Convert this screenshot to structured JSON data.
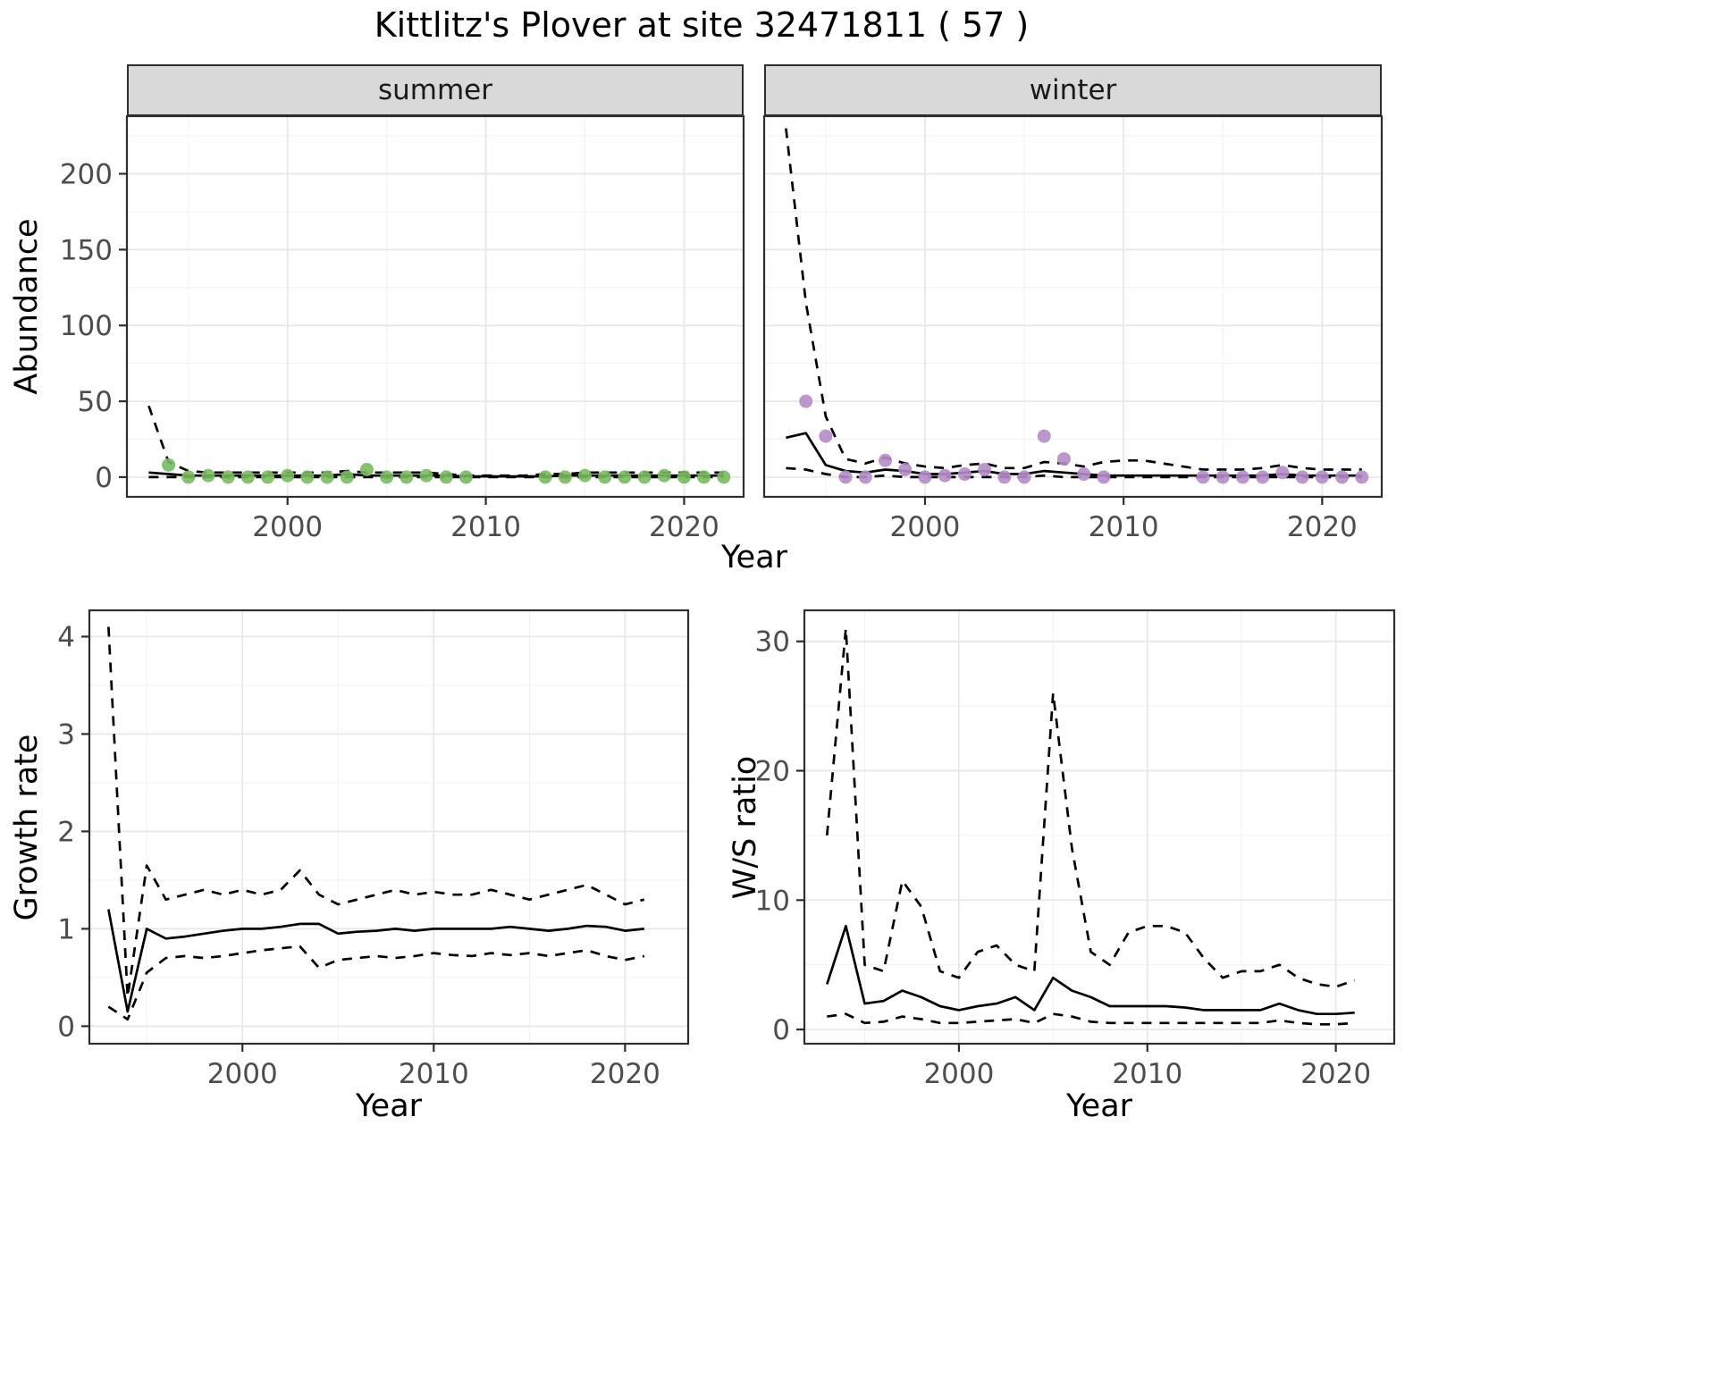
{
  "title": "Kittlitz's Plover at site 32471811 ( 57 )",
  "labels": {
    "strip_summer": "summer",
    "strip_winter": "winter",
    "ylabel_top": "Abundance",
    "ylabel_growth": "Growth rate",
    "ylabel_ws": "W/S ratio",
    "xlabel_top": "Year",
    "xlabel_growth": "Year",
    "xlabel_ws": "Year"
  },
  "colors": {
    "summer_point": "#77bb5e",
    "winter_point": "#b48cc8",
    "line": "#000000",
    "strip_bg": "#d9d9d9",
    "grid_major": "#e7e7e7",
    "grid_minor": "#f3f3f3",
    "panel_border": "#2e2e2e",
    "tick_text": "#4d4d4d"
  },
  "chart_data": [
    {
      "id": "abundance_summer",
      "type": "line",
      "facet": "summer",
      "xlabel": "Year",
      "ylabel": "Abundance",
      "x": [
        1993,
        1994,
        1995,
        1996,
        1997,
        1998,
        1999,
        2000,
        2001,
        2002,
        2003,
        2004,
        2005,
        2006,
        2007,
        2008,
        2009,
        2010,
        2011,
        2012,
        2013,
        2014,
        2015,
        2016,
        2017,
        2018,
        2019,
        2020,
        2021,
        2022
      ],
      "xticks": [
        2000,
        2010,
        2020
      ],
      "yticks": [
        0,
        50,
        100,
        150,
        200
      ],
      "xlim": [
        1991.9,
        2023.0
      ],
      "ylim": [
        -13,
        238
      ],
      "series": [
        {
          "name": "upper_95ci",
          "style": "dashed",
          "values": [
            47,
            10,
            4,
            3,
            3,
            3,
            3,
            3,
            3,
            3,
            4,
            3,
            3,
            3,
            3,
            2,
            1,
            1,
            1,
            1,
            2,
            2,
            3,
            3,
            3,
            3,
            3,
            3,
            3,
            3
          ]
        },
        {
          "name": "median",
          "style": "solid",
          "values": [
            3,
            2,
            1,
            1,
            1,
            1,
            1,
            1,
            1,
            1,
            2,
            1,
            1,
            1,
            1,
            1,
            0.5,
            0.5,
            0.5,
            0.5,
            0.5,
            1,
            1,
            1,
            1,
            1,
            1,
            1,
            1,
            1
          ]
        },
        {
          "name": "lower_95ci",
          "style": "dashed",
          "values": [
            0,
            0,
            0,
            0,
            0,
            0,
            0,
            0,
            0,
            0,
            0,
            0,
            0,
            0,
            0,
            0,
            0,
            0,
            0,
            0,
            0,
            0,
            0,
            0,
            0,
            0,
            0,
            0,
            0,
            0
          ]
        },
        {
          "name": "observed_counts",
          "style": "points",
          "color_key": "summer_point",
          "values": [
            null,
            8,
            0,
            1,
            0,
            0,
            0,
            1,
            0,
            0,
            0,
            5,
            0,
            0,
            1,
            0,
            0,
            null,
            null,
            null,
            0,
            0,
            1,
            0,
            0,
            0,
            1,
            0,
            0,
            0
          ]
        }
      ]
    },
    {
      "id": "abundance_winter",
      "type": "line",
      "facet": "winter",
      "xlabel": "Year",
      "ylabel": "Abundance",
      "x": [
        1993,
        1994,
        1995,
        1996,
        1997,
        1998,
        1999,
        2000,
        2001,
        2002,
        2003,
        2004,
        2005,
        2006,
        2007,
        2008,
        2009,
        2010,
        2011,
        2012,
        2013,
        2014,
        2015,
        2016,
        2017,
        2018,
        2019,
        2020,
        2021,
        2022
      ],
      "xticks": [
        2000,
        2010,
        2020
      ],
      "yticks": [
        0,
        50,
        100,
        150,
        200
      ],
      "xlim": [
        1991.9,
        2023.0
      ],
      "ylim": [
        -13,
        238
      ],
      "series": [
        {
          "name": "upper_95ci",
          "style": "dashed",
          "values": [
            230,
            115,
            40,
            12,
            9,
            13,
            9,
            7,
            6,
            8,
            9,
            6,
            6,
            10,
            9,
            7,
            10,
            11,
            11,
            9,
            7,
            5,
            5,
            5,
            6,
            8,
            6,
            5,
            5,
            5
          ]
        },
        {
          "name": "median",
          "style": "solid",
          "values": [
            26,
            29,
            8,
            4,
            3,
            5,
            4,
            2,
            2,
            3,
            4,
            2,
            2,
            4,
            3,
            2,
            1,
            1,
            1,
            1,
            1,
            1,
            1,
            1,
            1,
            2,
            1,
            1,
            1,
            1
          ]
        },
        {
          "name": "lower_95ci",
          "style": "dashed",
          "values": [
            6,
            5,
            2,
            0,
            0,
            1,
            0,
            0,
            0,
            0,
            0,
            0,
            0,
            1,
            0,
            0,
            0,
            0,
            0,
            0,
            0,
            0,
            0,
            0,
            0,
            0,
            0,
            0,
            0,
            0
          ]
        },
        {
          "name": "observed_counts",
          "style": "points",
          "color_key": "winter_point",
          "values": [
            null,
            50,
            27,
            0,
            0,
            11,
            5,
            0,
            1,
            2,
            5,
            0,
            0,
            27,
            12,
            2,
            0,
            null,
            null,
            null,
            null,
            0,
            0,
            0,
            0,
            3,
            0,
            0,
            0,
            0
          ]
        }
      ]
    },
    {
      "id": "growth_rate",
      "type": "line",
      "xlabel": "Year",
      "ylabel": "Growth rate",
      "x": [
        1993,
        1994,
        1995,
        1996,
        1997,
        1998,
        1999,
        2000,
        2001,
        2002,
        2003,
        2004,
        2005,
        2006,
        2007,
        2008,
        2009,
        2010,
        2011,
        2012,
        2013,
        2014,
        2015,
        2016,
        2017,
        2018,
        2019,
        2020,
        2021
      ],
      "xticks": [
        2000,
        2010,
        2020
      ],
      "yticks": [
        0,
        1,
        2,
        3,
        4
      ],
      "xlim": [
        1992.0,
        2023.3
      ],
      "ylim": [
        -0.18,
        4.27
      ],
      "series": [
        {
          "name": "upper_95ci",
          "style": "dashed",
          "values": [
            4.1,
            0.3,
            1.65,
            1.3,
            1.35,
            1.4,
            1.35,
            1.4,
            1.35,
            1.4,
            1.6,
            1.35,
            1.25,
            1.3,
            1.35,
            1.4,
            1.35,
            1.38,
            1.35,
            1.35,
            1.4,
            1.35,
            1.3,
            1.35,
            1.4,
            1.45,
            1.35,
            1.25,
            1.3
          ]
        },
        {
          "name": "median",
          "style": "solid",
          "values": [
            1.2,
            0.15,
            1.0,
            0.9,
            0.92,
            0.95,
            0.98,
            1.0,
            1.0,
            1.02,
            1.05,
            1.05,
            0.95,
            0.97,
            0.98,
            1.0,
            0.98,
            1.0,
            1.0,
            1.0,
            1.0,
            1.02,
            1.0,
            0.98,
            1.0,
            1.03,
            1.02,
            0.98,
            1.0
          ]
        },
        {
          "name": "lower_95ci",
          "style": "dashed",
          "values": [
            0.2,
            0.07,
            0.55,
            0.7,
            0.72,
            0.7,
            0.72,
            0.75,
            0.78,
            0.8,
            0.82,
            0.6,
            0.68,
            0.7,
            0.72,
            0.7,
            0.72,
            0.75,
            0.73,
            0.72,
            0.75,
            0.73,
            0.75,
            0.72,
            0.75,
            0.78,
            0.72,
            0.68,
            0.72
          ]
        }
      ]
    },
    {
      "id": "winter_summer_ratio",
      "type": "line",
      "xlabel": "Year",
      "ylabel": "W/S ratio",
      "x": [
        1993,
        1994,
        1995,
        1996,
        1997,
        1998,
        1999,
        2000,
        2001,
        2002,
        2003,
        2004,
        2005,
        2006,
        2007,
        2008,
        2009,
        2010,
        2011,
        2012,
        2013,
        2014,
        2015,
        2016,
        2017,
        2018,
        2019,
        2020,
        2021
      ],
      "xticks": [
        2000,
        2010,
        2020
      ],
      "yticks": [
        0,
        10,
        20,
        30
      ],
      "xlim": [
        1991.8,
        2023.1
      ],
      "ylim": [
        -1.1,
        32.4
      ],
      "series": [
        {
          "name": "upper_95ci",
          "style": "dashed",
          "values": [
            15,
            31,
            5,
            4.5,
            11.5,
            9.5,
            4.5,
            4,
            6,
            6.5,
            5,
            4.5,
            26,
            14,
            6,
            5,
            7.5,
            8,
            8,
            7.5,
            5.5,
            4,
            4.5,
            4.5,
            5,
            4,
            3.5,
            3.3,
            3.8
          ]
        },
        {
          "name": "median",
          "style": "solid",
          "values": [
            3.5,
            8,
            2,
            2.2,
            3,
            2.5,
            1.8,
            1.5,
            1.8,
            2,
            2.5,
            1.5,
            4,
            3,
            2.5,
            1.8,
            1.8,
            1.8,
            1.8,
            1.7,
            1.5,
            1.5,
            1.5,
            1.5,
            2,
            1.5,
            1.2,
            1.2,
            1.3
          ]
        },
        {
          "name": "lower_95ci",
          "style": "dashed",
          "values": [
            1,
            1.2,
            0.5,
            0.6,
            1,
            0.8,
            0.5,
            0.5,
            0.6,
            0.7,
            0.8,
            0.5,
            1.2,
            1,
            0.6,
            0.5,
            0.5,
            0.5,
            0.5,
            0.5,
            0.5,
            0.5,
            0.5,
            0.5,
            0.7,
            0.5,
            0.4,
            0.4,
            0.5
          ]
        }
      ]
    }
  ]
}
